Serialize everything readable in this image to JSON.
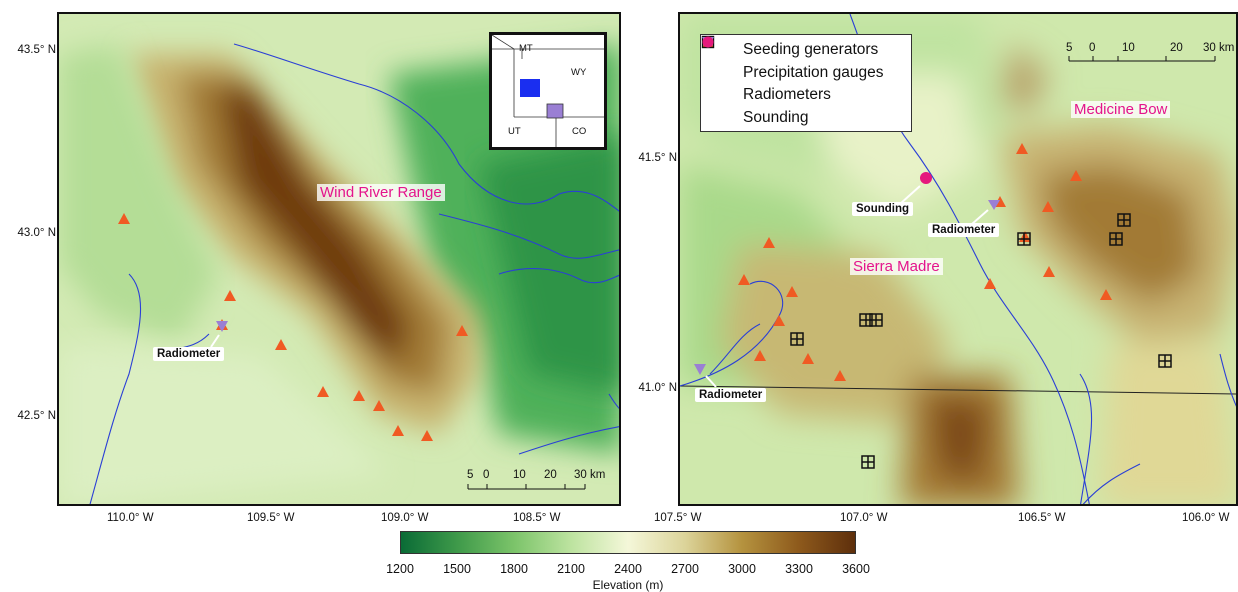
{
  "left_map": {
    "range_label": "Wind River Range",
    "callout_radiometer": "Radiometer",
    "lat_ticks": [
      "43.5° N",
      "43.0° N",
      "42.5° N"
    ],
    "lon_ticks": [
      "110.0° W",
      "109.5° W",
      "109.0° W",
      "108.5° W"
    ],
    "scale_ticks": [
      "5",
      "0",
      "10",
      "20",
      "30 km"
    ],
    "inset_states": [
      "MT",
      "WY",
      "UT",
      "CO"
    ],
    "inset_colors": {
      "wind_river": "#1a2ef0",
      "sierra_madre": "#9a7fd4"
    }
  },
  "right_map": {
    "range_labels": [
      "Medicine Bow",
      "Sierra Madre"
    ],
    "callouts": [
      "Sounding",
      "Radiometer",
      "Radiometer"
    ],
    "lat_ticks": [
      "41.5° N",
      "41.0° N"
    ],
    "lon_ticks": [
      "107.5° W",
      "107.0° W",
      "106.5° W",
      "106.0° W"
    ],
    "scale_ticks": [
      "5",
      "0",
      "10",
      "20",
      "30 km"
    ]
  },
  "legend": [
    {
      "label": "Seeding generators",
      "symbol": "triangle-up",
      "color": "#f05a23"
    },
    {
      "label": "Precipitation gauges",
      "symbol": "boxed-plus",
      "color": "#111111"
    },
    {
      "label": "Radiometers",
      "symbol": "triangle-down",
      "color": "#9a7fd4"
    },
    {
      "label": "Sounding",
      "symbol": "circle",
      "color": "#e5197d"
    }
  ],
  "colorbar": {
    "title": "Elevation (m)",
    "ticks": [
      "1200",
      "1500",
      "1800",
      "2100",
      "2400",
      "2700",
      "3000",
      "3300",
      "3600"
    ],
    "colors": [
      "#0a6b36",
      "#3f9a4a",
      "#7cc46a",
      "#bde3a0",
      "#f4f7d9",
      "#dcd49a",
      "#b5933f",
      "#8e5a1c",
      "#5e2f0c"
    ]
  }
}
